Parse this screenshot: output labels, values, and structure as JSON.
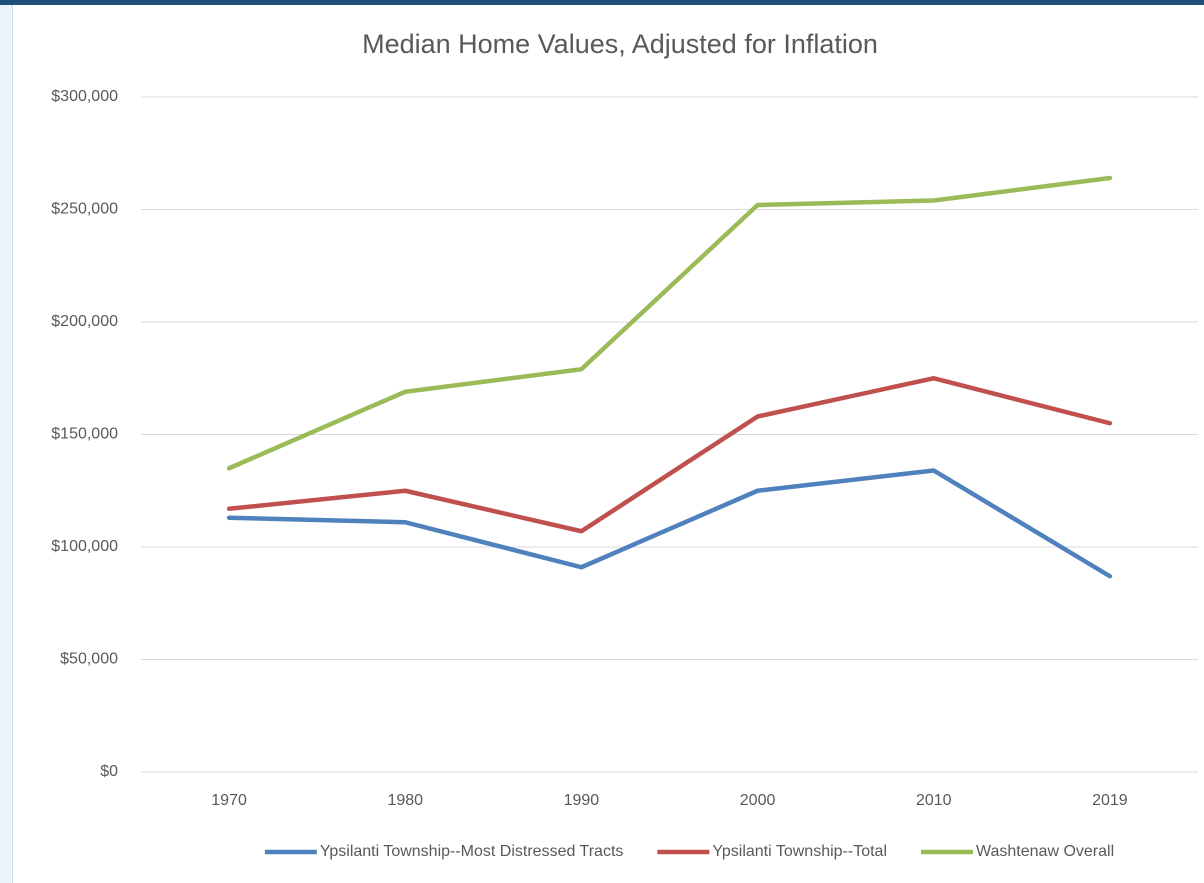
{
  "chart_data": {
    "type": "line",
    "title": "Median Home Values, Adjusted for Inflation",
    "categories": [
      "1970",
      "1980",
      "1990",
      "2000",
      "2010",
      "2019"
    ],
    "series": [
      {
        "name": "Ypsilanti Township--Most Distressed Tracts",
        "color": "#4f81bd",
        "values": [
          113000,
          111000,
          91000,
          125000,
          134000,
          87000
        ]
      },
      {
        "name": "Ypsilanti Township--Total",
        "color": "#c0504d",
        "values": [
          117000,
          125000,
          107000,
          158000,
          175000,
          155000
        ]
      },
      {
        "name": "Washtenaw Overall",
        "color": "#9bbb59",
        "values": [
          135000,
          169000,
          179000,
          252000,
          254000,
          264000
        ]
      }
    ],
    "ylim": [
      0,
      300000
    ],
    "yticks": [
      {
        "value": 0,
        "label": "$0"
      },
      {
        "value": 50000,
        "label": "$50,000"
      },
      {
        "value": 100000,
        "label": "$100,000"
      },
      {
        "value": 150000,
        "label": "$150,000"
      },
      {
        "value": 200000,
        "label": "$200,000"
      },
      {
        "value": 250000,
        "label": "$250,000"
      },
      {
        "value": 300000,
        "label": "$300,000"
      }
    ],
    "grid": true,
    "legend": "bottom"
  }
}
